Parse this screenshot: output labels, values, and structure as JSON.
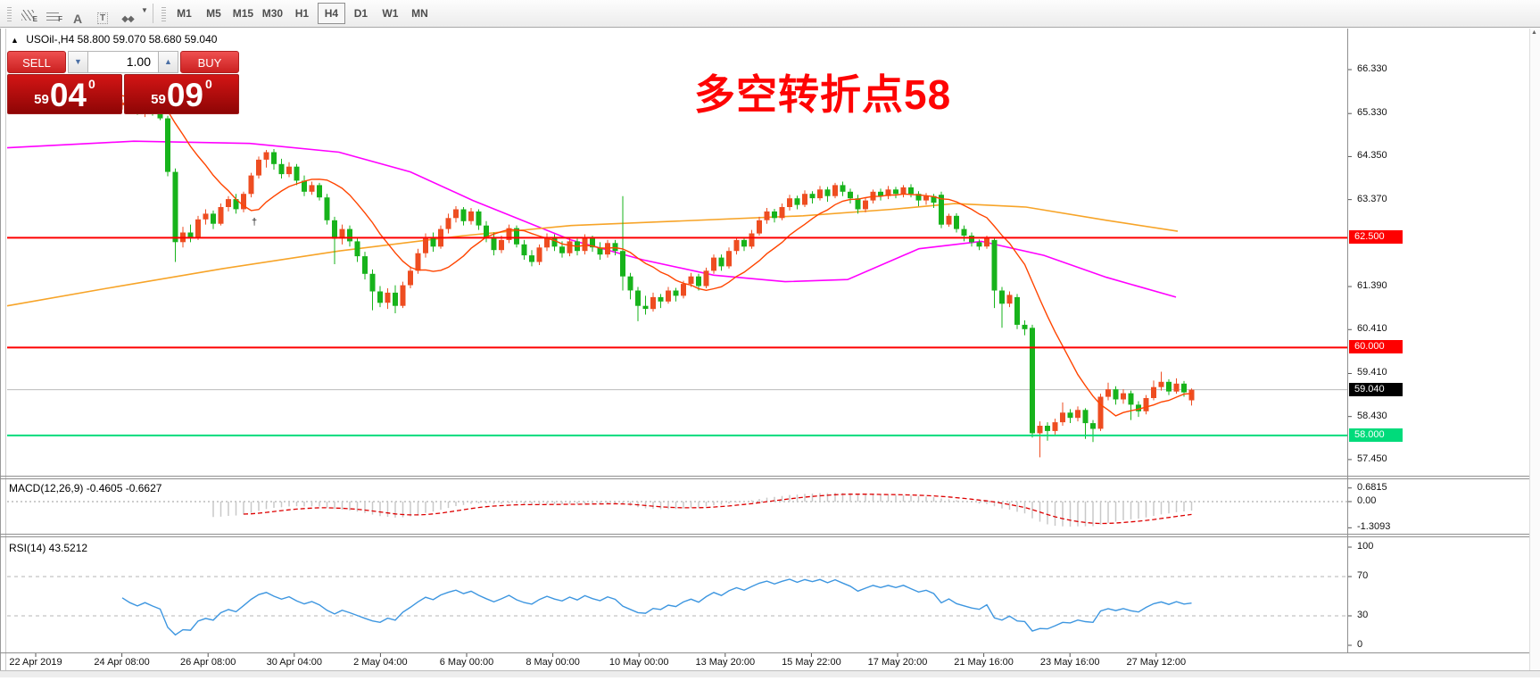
{
  "toolbar": {
    "icons": [
      {
        "name": "equidistant-channel-icon",
        "letter": "E"
      },
      {
        "name": "fibonacci-retracement-icon",
        "letter": "F"
      },
      {
        "name": "text-icon",
        "letter": "A"
      },
      {
        "name": "text-label-icon",
        "letter": "T"
      },
      {
        "name": "arrow-objects-icon",
        "letter": ""
      }
    ],
    "timeframes": [
      "M1",
      "M5",
      "M15",
      "M30",
      "H1",
      "H4",
      "D1",
      "W1",
      "MN"
    ],
    "active_timeframe": "H4"
  },
  "chart_header": {
    "symbol": "USOil-,H4",
    "ohlc_text": "58.800 59.070 58.680 59.040"
  },
  "trade_panel": {
    "sell_label": "SELL",
    "buy_label": "BUY",
    "volume": "1.00",
    "sell_price": {
      "small": "59",
      "big": "04",
      "sup": "0"
    },
    "buy_price": {
      "small": "59",
      "big": "09",
      "sup": "0"
    }
  },
  "annotation": {
    "text": "多空转折点58",
    "color": "#fe0404"
  },
  "macd_panel": {
    "label": "MACD(12,26,9) -0.4605 -0.6627",
    "ticks": [
      {
        "label": "0.6815",
        "v": 0.6815
      },
      {
        "label": "0.00",
        "v": 0
      },
      {
        "label": "-1.3093",
        "v": -1.3093
      }
    ]
  },
  "rsi_panel": {
    "label": "RSI(14) 43.5212",
    "ticks": [
      {
        "label": "100",
        "v": 100
      },
      {
        "label": "70",
        "v": 70
      },
      {
        "label": "30",
        "v": 30
      },
      {
        "label": "0",
        "v": 0
      }
    ],
    "guides": [
      70,
      30
    ]
  },
  "chart_data": {
    "type": "candlestick",
    "symbol": "USOil",
    "timeframe": "H4",
    "title": "USOil-,H4",
    "last_ohlc": {
      "open": 58.8,
      "high": 59.07,
      "low": 58.68,
      "close": 59.04
    },
    "y_ticks": [
      {
        "label": "66.330",
        "price": 66.33
      },
      {
        "label": "65.330",
        "price": 65.33
      },
      {
        "label": "64.350",
        "price": 64.35
      },
      {
        "label": "63.370",
        "price": 63.37
      },
      {
        "label": "61.390",
        "price": 61.39
      },
      {
        "label": "60.410",
        "price": 60.41
      },
      {
        "label": "59.410",
        "price": 59.41
      },
      {
        "label": "58.430",
        "price": 58.43
      },
      {
        "label": "57.450",
        "price": 57.45
      }
    ],
    "levels": [
      {
        "label": "62.500",
        "price": 62.5,
        "color": "#fe0000",
        "width": 2
      },
      {
        "label": "60.000",
        "price": 60.0,
        "color": "#fe0000",
        "width": 2
      },
      {
        "label": "58.000",
        "price": 58.0,
        "color": "#00db7b",
        "width": 2
      }
    ],
    "current_price": {
      "label": "59.040",
      "price": 59.04,
      "line_color": "#bcbcbc",
      "badge_color": "#000000"
    },
    "x_labels": [
      "22 Apr 2019",
      "24 Apr 08:00",
      "26 Apr 08:00",
      "30 Apr 04:00",
      "2 May 04:00",
      "6 May 00:00",
      "8 May 00:00",
      "10 May 00:00",
      "13 May 20:00",
      "15 May 22:00",
      "17 May 20:00",
      "21 May 16:00",
      "23 May 16:00",
      "27 May 12:00"
    ],
    "colors": {
      "bull": "#ee4d21",
      "bear": "#17b31b",
      "fast_ma": "#ff4500",
      "mid_ma": "#ff00ff",
      "slow_ma": "#f7a428",
      "macd_hist": "#c8c8c8",
      "macd_signal": "#dd0000",
      "rsi_line": "#3d96e0"
    },
    "markers": [
      {
        "glyph": "†",
        "x": 282,
        "y": 243
      }
    ],
    "moving_averages": {
      "fast_period": 12,
      "mid_points": [
        [
          8,
          64.55
        ],
        [
          150,
          64.7
        ],
        [
          280,
          64.65
        ],
        [
          380,
          64.45
        ],
        [
          460,
          64.0
        ],
        [
          530,
          63.35
        ],
        [
          640,
          62.45
        ],
        [
          720,
          62.0
        ],
        [
          800,
          61.65
        ],
        [
          880,
          61.5
        ],
        [
          950,
          61.55
        ],
        [
          1030,
          62.25
        ],
        [
          1100,
          62.42
        ],
        [
          1170,
          62.1
        ],
        [
          1240,
          61.6
        ],
        [
          1318,
          61.15
        ]
      ],
      "slow_points": [
        [
          8,
          60.95
        ],
        [
          120,
          61.35
        ],
        [
          250,
          61.8
        ],
        [
          380,
          62.2
        ],
        [
          520,
          62.55
        ],
        [
          640,
          62.78
        ],
        [
          760,
          62.88
        ],
        [
          900,
          63.0
        ],
        [
          1000,
          63.15
        ],
        [
          1070,
          63.28
        ],
        [
          1150,
          63.2
        ],
        [
          1240,
          62.9
        ],
        [
          1320,
          62.65
        ]
      ]
    },
    "macd": {
      "fast": 12,
      "slow": 26,
      "signal": 9,
      "main_value": -0.4605,
      "signal_value": -0.6627
    },
    "rsi": {
      "period": 14,
      "value": 43.5212
    },
    "candles_ohlc_note": "each candle is [open, high, low, close]; bear candles drawn green, bull candles orange-red (CN color convention)",
    "candles": [
      [
        65.55,
        65.7,
        65.45,
        65.62
      ],
      [
        65.62,
        65.75,
        65.5,
        65.55
      ],
      [
        65.55,
        65.82,
        65.52,
        65.78
      ],
      [
        65.78,
        65.92,
        65.7,
        65.85
      ],
      [
        65.85,
        65.95,
        65.72,
        65.8
      ],
      [
        65.8,
        65.9,
        65.65,
        65.72
      ],
      [
        65.72,
        65.85,
        65.62,
        65.8
      ],
      [
        65.8,
        65.95,
        65.75,
        65.88
      ],
      [
        65.88,
        65.98,
        65.78,
        65.9
      ],
      [
        65.9,
        65.96,
        65.7,
        65.76
      ],
      [
        65.76,
        65.85,
        65.62,
        65.68
      ],
      [
        65.68,
        65.8,
        65.58,
        65.74
      ],
      [
        65.74,
        65.82,
        65.55,
        65.6
      ],
      [
        65.6,
        65.72,
        65.48,
        65.52
      ],
      [
        65.52,
        65.65,
        65.42,
        65.58
      ],
      [
        65.58,
        65.66,
        65.4,
        65.45
      ],
      [
        65.45,
        65.55,
        65.3,
        65.35
      ],
      [
        65.35,
        65.48,
        65.25,
        65.42
      ],
      [
        65.42,
        65.5,
        65.28,
        65.32
      ],
      [
        65.32,
        65.4,
        65.18,
        65.22
      ],
      [
        65.22,
        65.28,
        63.9,
        64.0
      ],
      [
        64.0,
        64.08,
        61.95,
        62.4
      ],
      [
        62.4,
        62.75,
        62.28,
        62.62
      ],
      [
        62.62,
        62.8,
        62.4,
        62.5
      ],
      [
        62.5,
        63.0,
        62.45,
        62.92
      ],
      [
        62.92,
        63.15,
        62.8,
        63.05
      ],
      [
        63.05,
        63.12,
        62.7,
        62.82
      ],
      [
        62.82,
        63.28,
        62.78,
        63.2
      ],
      [
        63.2,
        63.45,
        63.1,
        63.38
      ],
      [
        63.38,
        63.5,
        63.05,
        63.15
      ],
      [
        63.15,
        63.55,
        63.08,
        63.5
      ],
      [
        63.5,
        63.98,
        63.42,
        63.92
      ],
      [
        63.92,
        64.35,
        63.85,
        64.28
      ],
      [
        64.28,
        64.5,
        64.1,
        64.45
      ],
      [
        64.45,
        64.52,
        64.05,
        64.18
      ],
      [
        64.18,
        64.3,
        63.85,
        63.95
      ],
      [
        63.95,
        64.22,
        63.88,
        64.12
      ],
      [
        64.12,
        64.18,
        63.7,
        63.8
      ],
      [
        63.8,
        63.92,
        63.45,
        63.55
      ],
      [
        63.55,
        63.78,
        63.48,
        63.7
      ],
      [
        63.7,
        63.75,
        63.35,
        63.42
      ],
      [
        63.42,
        63.5,
        62.8,
        62.9
      ],
      [
        62.9,
        62.98,
        61.9,
        62.48
      ],
      [
        62.48,
        62.8,
        62.35,
        62.7
      ],
      [
        62.7,
        62.78,
        62.3,
        62.42
      ],
      [
        62.42,
        62.5,
        61.95,
        62.08
      ],
      [
        62.08,
        62.18,
        61.55,
        61.68
      ],
      [
        61.68,
        61.78,
        60.85,
        61.28
      ],
      [
        61.28,
        61.4,
        60.92,
        61.02
      ],
      [
        61.02,
        61.35,
        60.88,
        61.25
      ],
      [
        61.25,
        61.42,
        60.78,
        60.95
      ],
      [
        60.95,
        61.5,
        60.9,
        61.42
      ],
      [
        61.42,
        61.85,
        61.35,
        61.75
      ],
      [
        61.75,
        62.25,
        61.68,
        62.15
      ],
      [
        62.15,
        62.6,
        62.05,
        62.52
      ],
      [
        62.52,
        62.62,
        62.18,
        62.3
      ],
      [
        62.3,
        62.78,
        62.25,
        62.7
      ],
      [
        62.7,
        63.05,
        62.6,
        62.95
      ],
      [
        62.95,
        63.22,
        62.85,
        63.15
      ],
      [
        63.15,
        63.2,
        62.78,
        62.88
      ],
      [
        62.88,
        63.18,
        62.8,
        63.1
      ],
      [
        63.1,
        63.15,
        62.68,
        62.78
      ],
      [
        62.78,
        62.88,
        62.4,
        62.5
      ],
      [
        62.5,
        62.62,
        62.1,
        62.22
      ],
      [
        62.22,
        62.55,
        62.15,
        62.45
      ],
      [
        62.45,
        62.8,
        62.38,
        62.72
      ],
      [
        62.72,
        62.78,
        62.28,
        62.35
      ],
      [
        62.35,
        62.45,
        62.0,
        62.1
      ],
      [
        62.1,
        62.22,
        61.85,
        61.95
      ],
      [
        61.95,
        62.35,
        61.88,
        62.28
      ],
      [
        62.28,
        62.6,
        62.2,
        62.52
      ],
      [
        62.52,
        62.58,
        62.2,
        62.3
      ],
      [
        62.3,
        62.42,
        62.05,
        62.15
      ],
      [
        62.15,
        62.5,
        62.08,
        62.42
      ],
      [
        62.42,
        62.48,
        62.1,
        62.2
      ],
      [
        62.2,
        62.58,
        62.12,
        62.5
      ],
      [
        62.5,
        62.55,
        62.18,
        62.28
      ],
      [
        62.28,
        62.4,
        62.0,
        62.12
      ],
      [
        62.12,
        62.45,
        62.05,
        62.38
      ],
      [
        62.38,
        62.45,
        62.1,
        62.2
      ],
      [
        62.2,
        63.45,
        61.3,
        61.62
      ],
      [
        61.62,
        61.7,
        61.1,
        61.3
      ],
      [
        61.3,
        61.38,
        60.6,
        60.95
      ],
      [
        60.95,
        61.18,
        60.75,
        60.88
      ],
      [
        60.88,
        61.25,
        60.82,
        61.15
      ],
      [
        61.15,
        61.22,
        60.9,
        61.05
      ],
      [
        61.05,
        61.38,
        61.0,
        61.3
      ],
      [
        61.3,
        61.36,
        61.05,
        61.18
      ],
      [
        61.18,
        61.52,
        61.12,
        61.45
      ],
      [
        61.45,
        61.7,
        61.38,
        61.62
      ],
      [
        61.62,
        61.68,
        61.3,
        61.4
      ],
      [
        61.4,
        61.82,
        61.35,
        61.75
      ],
      [
        61.75,
        62.12,
        61.68,
        62.05
      ],
      [
        62.05,
        62.12,
        61.75,
        61.85
      ],
      [
        61.85,
        62.28,
        61.8,
        62.2
      ],
      [
        62.2,
        62.52,
        62.12,
        62.45
      ],
      [
        62.45,
        62.52,
        62.2,
        62.3
      ],
      [
        62.3,
        62.68,
        62.25,
        62.6
      ],
      [
        62.6,
        62.98,
        62.55,
        62.9
      ],
      [
        62.9,
        63.18,
        62.82,
        63.1
      ],
      [
        63.1,
        63.16,
        62.85,
        62.95
      ],
      [
        62.95,
        63.28,
        62.9,
        63.2
      ],
      [
        63.2,
        63.48,
        63.12,
        63.4
      ],
      [
        63.4,
        63.46,
        63.15,
        63.25
      ],
      [
        63.25,
        63.58,
        63.2,
        63.5
      ],
      [
        63.5,
        63.56,
        63.28,
        63.4
      ],
      [
        63.4,
        63.68,
        63.35,
        63.6
      ],
      [
        63.6,
        63.66,
        63.32,
        63.45
      ],
      [
        63.45,
        63.75,
        63.4,
        63.7
      ],
      [
        63.7,
        63.78,
        63.45,
        63.55
      ],
      [
        63.55,
        63.62,
        63.28,
        63.4
      ],
      [
        63.4,
        63.48,
        63.05,
        63.15
      ],
      [
        63.15,
        63.42,
        63.08,
        63.35
      ],
      [
        63.35,
        63.6,
        63.28,
        63.55
      ],
      [
        63.55,
        63.62,
        63.35,
        63.45
      ],
      [
        63.45,
        63.68,
        63.38,
        63.6
      ],
      [
        63.6,
        63.66,
        63.4,
        63.5
      ],
      [
        63.5,
        63.7,
        63.42,
        63.65
      ],
      [
        63.65,
        63.72,
        63.42,
        63.5
      ],
      [
        63.5,
        63.56,
        63.22,
        63.35
      ],
      [
        63.35,
        63.52,
        63.25,
        63.45
      ],
      [
        63.45,
        63.5,
        63.18,
        63.3
      ],
      [
        63.48,
        63.55,
        62.72,
        62.8
      ],
      [
        62.8,
        63.05,
        62.75,
        63.0
      ],
      [
        63.0,
        63.06,
        62.62,
        62.7
      ],
      [
        62.7,
        62.78,
        62.42,
        62.55
      ],
      [
        62.55,
        62.62,
        62.3,
        62.4
      ],
      [
        62.4,
        62.46,
        62.22,
        62.3
      ],
      [
        62.3,
        62.55,
        62.25,
        62.5
      ],
      [
        62.45,
        62.52,
        60.9,
        61.3
      ],
      [
        61.3,
        61.38,
        60.45,
        61.0
      ],
      [
        61.0,
        61.28,
        60.92,
        61.2
      ],
      [
        61.15,
        61.22,
        60.42,
        60.52
      ],
      [
        60.52,
        60.62,
        60.28,
        60.42
      ],
      [
        60.45,
        60.52,
        57.95,
        58.05
      ],
      [
        58.05,
        58.32,
        57.5,
        58.22
      ],
      [
        58.22,
        58.3,
        57.88,
        58.1
      ],
      [
        58.1,
        58.38,
        58.02,
        58.3
      ],
      [
        58.3,
        58.75,
        58.22,
        58.52
      ],
      [
        58.52,
        58.6,
        58.28,
        58.4
      ],
      [
        58.4,
        58.66,
        58.32,
        58.58
      ],
      [
        58.58,
        58.62,
        57.92,
        58.28
      ],
      [
        58.28,
        58.35,
        57.85,
        58.15
      ],
      [
        58.15,
        58.95,
        58.1,
        58.88
      ],
      [
        58.88,
        59.2,
        58.8,
        59.05
      ],
      [
        59.05,
        59.12,
        58.7,
        58.82
      ],
      [
        58.82,
        59.05,
        58.72,
        58.96
      ],
      [
        58.96,
        59.02,
        58.35,
        58.7
      ],
      [
        58.7,
        58.78,
        58.42,
        58.55
      ],
      [
        58.55,
        58.92,
        58.48,
        58.85
      ],
      [
        58.85,
        59.25,
        58.8,
        59.1
      ],
      [
        59.1,
        59.45,
        59.02,
        59.22
      ],
      [
        59.22,
        59.28,
        58.92,
        59.0
      ],
      [
        59.0,
        59.3,
        58.95,
        59.18
      ],
      [
        59.18,
        59.24,
        58.88,
        58.98
      ],
      [
        58.8,
        59.07,
        58.68,
        59.04
      ]
    ]
  }
}
